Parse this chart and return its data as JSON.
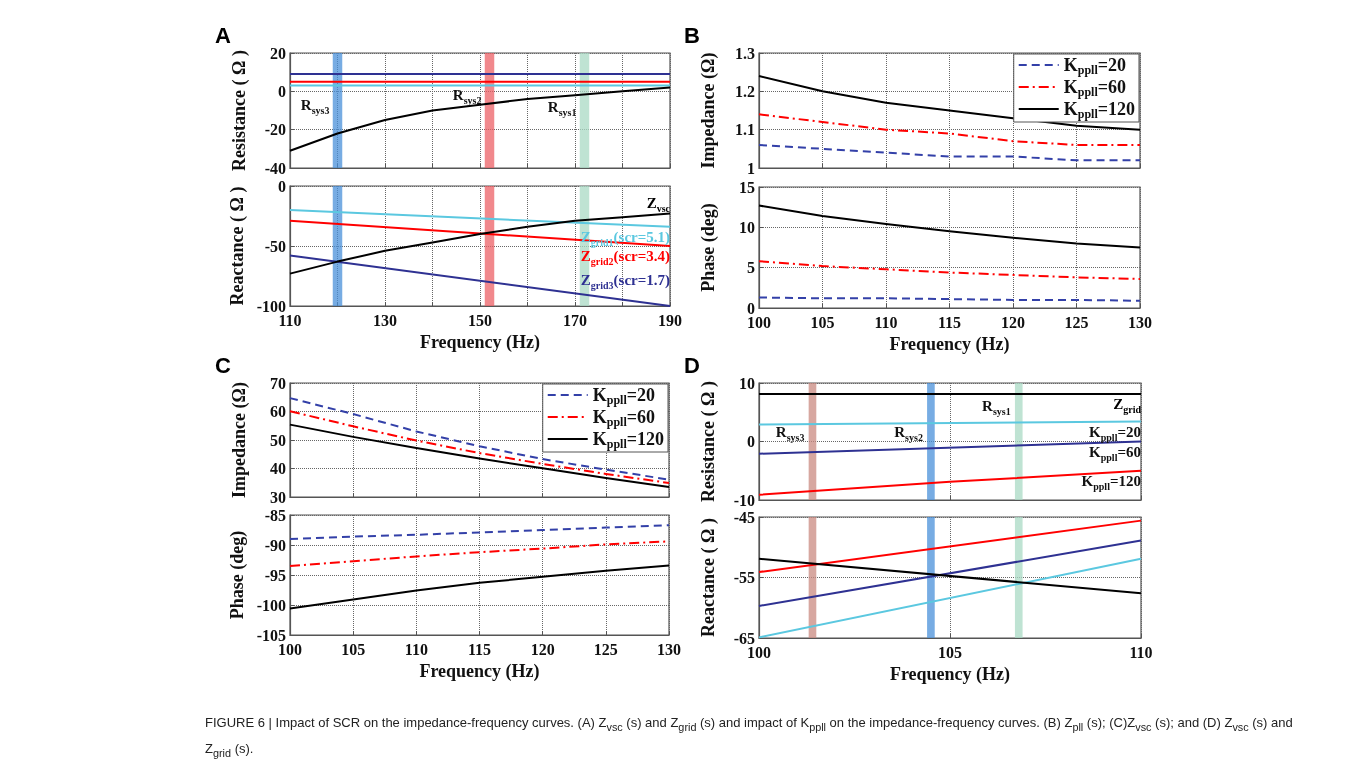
{
  "chart_data": [
    {
      "type": "line",
      "title": "A",
      "ylabel": "Resistance ( Ω )",
      "x": [
        110,
        120,
        130,
        140,
        150,
        160,
        170,
        180,
        190
      ],
      "xlim": [
        110,
        190
      ],
      "xticks": [
        110,
        {
          "value": 120,
          "label": null
        },
        130,
        {
          "value": 140,
          "label": null
        },
        150,
        {
          "value": 160,
          "label": null
        },
        170,
        {
          "value": 180,
          "label": null
        },
        190
      ],
      "ylim": [
        -40,
        20
      ],
      "yticks": [
        -40,
        -20,
        0,
        20
      ],
      "grid": true,
      "tick_labels": "y",
      "marker": "none",
      "series": [
        {
          "color": "#2e3192",
          "x": [
            110,
            190
          ],
          "values": [
            9,
            9
          ]
        },
        {
          "color": "#ff0000",
          "x": [
            110,
            190
          ],
          "values": [
            5,
            5
          ]
        },
        {
          "color": "#5bc8e0",
          "x": [
            110,
            190
          ],
          "values": [
            3,
            3
          ]
        },
        {
          "color": "#000000",
          "values": [
            -31,
            -22,
            -15,
            -10,
            -7,
            -4,
            -2,
            0,
            2
          ]
        }
      ],
      "bands": [
        {
          "axis": "x",
          "from": 119,
          "to": 121,
          "color": "#4a90d9"
        },
        {
          "axis": "x",
          "from": 151,
          "to": 153,
          "color": "#ec6066"
        },
        {
          "axis": "x",
          "from": 171,
          "to": 173,
          "color": "#a9d9c4"
        }
      ],
      "annotations": [
        {
          "text": "R$_{sys3}$",
          "x": 120,
          "y": -7
        },
        {
          "text": "R$_{sys2}$",
          "x": 152,
          "y": -2
        },
        {
          "text": "R$_{sys1}$",
          "x": 172,
          "y": -8
        },
        "FIGURE 6 | Impact of SCR on the impedance-frequency curves. (A) Z$_{vsc}$ (s) and Z$_{grid}$ (s) and impact of K$_{ppll}$ on the impedance-frequency curves. (B) Z$_{pll}$ (s); (C)Z$_{vsc}$ (s); and (D) Z$_{vsc}$ (s) and Z$_{grid}$ (s)."
      ]
    },
    {
      "type": "line",
      "xlabel": "Frequency (Hz)",
      "ylabel": "Reactance ( Ω )",
      "x": [
        110,
        120,
        130,
        140,
        150,
        160,
        170,
        180,
        190
      ],
      "xlim": [
        110,
        190
      ],
      "xticks": [
        110,
        {
          "value": 120,
          "label": null
        },
        130,
        {
          "value": 140,
          "label": null
        },
        150,
        {
          "value": 160,
          "label": null
        },
        170,
        {
          "value": 180,
          "label": null
        },
        190
      ],
      "ylim": [
        -100,
        0
      ],
      "yticks": [
        -100,
        -50,
        0
      ],
      "grid": true,
      "marker": "none",
      "series": [
        {
          "name": "Z$_{grid1}$(scr=5.1)",
          "color": "#5bc8e0",
          "x": [
            110,
            190
          ],
          "values": [
            -20,
            -34
          ]
        },
        {
          "name": "Z$_{grid2}$(scr=3.4)",
          "color": "#ff0000",
          "x": [
            110,
            190
          ],
          "values": [
            -29,
            -50
          ]
        },
        {
          "name": "Z$_{grid3}$(scr=1.7)",
          "color": "#2e3192",
          "x": [
            110,
            190
          ],
          "values": [
            -58,
            -100
          ]
        },
        {
          "name": "Z$_{vsc}$",
          "color": "#000000",
          "values": [
            -73,
            -63,
            -54,
            -47,
            -40,
            -34,
            -29,
            -26,
            -23
          ]
        }
      ],
      "bands": [
        {
          "axis": "x",
          "from": 119,
          "to": 121,
          "color": "#4a90d9"
        },
        {
          "axis": "x",
          "from": 151,
          "to": 153,
          "color": "#ec6066"
        },
        {
          "axis": "x",
          "from": 171,
          "to": 173,
          "color": "#a9d9c4"
        }
      ]
    },
    {
      "type": "line",
      "title": "B",
      "ylabel": "Impedance (Ω)",
      "x": [
        100,
        105,
        110,
        115,
        120,
        125,
        130
      ],
      "xlim": [
        100,
        130
      ],
      "xticks": [
        100,
        105,
        110,
        115,
        120,
        125,
        130
      ],
      "ylim": [
        1,
        1.3
      ],
      "yticks": [
        1,
        1.1,
        1.2,
        1.3
      ],
      "grid": true,
      "tick_labels": "y",
      "marker": "none",
      "legend": "top right",
      "series": [
        {
          "name": "K$_{ppll}$=20",
          "color": "#3340a8",
          "line_style": "dashed",
          "values": [
            1.06,
            1.05,
            1.04,
            1.03,
            1.03,
            1.02,
            1.02
          ]
        },
        {
          "name": "K$_{ppll}$=60",
          "color": "#ff0000",
          "line_style": "dashdot",
          "values": [
            1.14,
            1.12,
            1.1,
            1.09,
            1.07,
            1.06,
            1.06
          ]
        },
        {
          "name": "K$_{ppll}$=120",
          "color": "#000000",
          "line_style": "solid",
          "values": [
            1.24,
            1.2,
            1.17,
            1.15,
            1.13,
            1.11,
            1.1
          ]
        }
      ]
    },
    {
      "type": "line",
      "xlabel": "Frequency (Hz)",
      "ylabel": "Phase (deg)",
      "x": [
        100,
        105,
        110,
        115,
        120,
        125,
        130
      ],
      "xlim": [
        100,
        130
      ],
      "xticks": [
        100,
        105,
        110,
        115,
        120,
        125,
        130
      ],
      "ylim": [
        0,
        15
      ],
      "yticks": [
        0,
        5,
        10,
        15
      ],
      "grid": true,
      "marker": "none",
      "series": [
        {
          "color": "#3340a8",
          "line_style": "dashed",
          "values": [
            1.3,
            1.2,
            1.2,
            1.1,
            1.0,
            1.0,
            0.9
          ]
        },
        {
          "color": "#ff0000",
          "line_style": "dashdot",
          "values": [
            5.8,
            5.2,
            4.8,
            4.4,
            4.1,
            3.8,
            3.6
          ]
        },
        {
          "color": "#000000",
          "line_style": "solid",
          "values": [
            12.7,
            11.4,
            10.4,
            9.5,
            8.7,
            8.0,
            7.5
          ]
        }
      ]
    },
    {
      "type": "line",
      "title": "C",
      "ylabel": "Impedance (Ω)",
      "x": [
        100,
        105,
        110,
        115,
        120,
        125,
        130
      ],
      "xlim": [
        100,
        130
      ],
      "xticks": [
        100,
        105,
        110,
        115,
        120,
        125,
        130
      ],
      "ylim": [
        30,
        70
      ],
      "yticks": [
        30,
        40,
        50,
        60,
        70
      ],
      "grid": true,
      "tick_labels": "y",
      "marker": "none",
      "legend": "top right",
      "series": [
        {
          "name": "K$_{ppll}$=20",
          "color": "#3340a8",
          "line_style": "dashed",
          "values": [
            64.7,
            59.1,
            53,
            47.8,
            43.3,
            39.6,
            36.1
          ]
        },
        {
          "name": "K$_{ppll}$=60",
          "color": "#ff0000",
          "line_style": "dashdot",
          "values": [
            60.1,
            54.8,
            49.8,
            45.4,
            41.6,
            38.1,
            34.9
          ]
        },
        {
          "name": "K$_{ppll}$=120",
          "color": "#000000",
          "line_style": "solid",
          "values": [
            55.4,
            51.1,
            47.2,
            43.5,
            40.1,
            36.7,
            33.5
          ]
        }
      ]
    },
    {
      "type": "line",
      "xlabel": "Frequency (Hz)",
      "ylabel": "Phase (deg)",
      "x": [
        100,
        105,
        110,
        115,
        120,
        125,
        130
      ],
      "xlim": [
        100,
        130
      ],
      "xticks": [
        100,
        105,
        110,
        115,
        120,
        125,
        130
      ],
      "ylim": [
        -105,
        -85
      ],
      "yticks": [
        -105,
        -100,
        -95,
        -90,
        -85
      ],
      "grid": true,
      "marker": "none",
      "series": [
        {
          "color": "#3340a8",
          "line_style": "dashed",
          "values": [
            -89,
            -88.6,
            -88.3,
            -87.9,
            -87.5,
            -87.1,
            -86.7
          ]
        },
        {
          "color": "#ff0000",
          "line_style": "dashdot",
          "values": [
            -93.5,
            -92.7,
            -91.9,
            -91.2,
            -90.6,
            -89.9,
            -89.4
          ]
        },
        {
          "color": "#000000",
          "line_style": "solid",
          "values": [
            -100.6,
            -99.1,
            -97.6,
            -96.3,
            -95.3,
            -94.3,
            -93.4
          ]
        }
      ]
    },
    {
      "type": "line",
      "title": "D",
      "ylabel": "Resistance ( Ω )",
      "x": [
        100,
        110
      ],
      "xlim": [
        100,
        110
      ],
      "xticks": [
        100,
        105,
        110
      ],
      "ylim": [
        -10,
        10
      ],
      "yticks": [
        -10,
        0,
        10
      ],
      "grid": true,
      "tick_labels": "y",
      "marker": "none",
      "series": [
        {
          "name": "Z$_{grid}$",
          "color": "#000000",
          "values": [
            8.1,
            8.1
          ]
        },
        {
          "color": "#5bc8e0",
          "values": [
            2.9,
            3.4
          ]
        },
        {
          "color": "#2e3192",
          "values": [
            -2.1,
            0
          ]
        },
        {
          "color": "#ff0000",
          "x": [
            100,
            105,
            110
          ],
          "values": [
            -9.1,
            -6.9,
            -5.0
          ]
        }
      ],
      "bands": [
        {
          "axis": "x",
          "from": 101.3,
          "to": 101.5,
          "color": "#c98a80"
        },
        {
          "axis": "x",
          "from": 104.4,
          "to": 104.6,
          "color": "#4a90d9"
        },
        {
          "axis": "x",
          "from": 106.7,
          "to": 106.9,
          "color": "#a9d9c4"
        }
      ],
      "annotations": [
        {
          "text": "R$_{sys3}$",
          "x": 101.4,
          "y": 1.7
        },
        {
          "text": "R$_{sys2}$",
          "x": 104.5,
          "y": 1.7
        },
        {
          "text": "R$_{sys1}$",
          "x": 106.8,
          "y": 6.1
        },
        {
          "text": "K$_{ppll}$=20",
          "x": 110,
          "y": 3.4
        },
        {
          "text": "K$_{ppll}$=60",
          "x": 110,
          "y": 0
        },
        {
          "text": "K$_{ppll}$=120",
          "x": 110,
          "y": -5.0
        }
      ]
    },
    {
      "type": "line",
      "xlabel": "Frequency (Hz)",
      "ylabel": "Reactance ( Ω )",
      "x": [
        100,
        110
      ],
      "xlim": [
        100,
        110
      ],
      "xticks": [
        100,
        105,
        110
      ],
      "ylim": [
        -65,
        -45
      ],
      "yticks": [
        -65,
        -55,
        -45
      ],
      "grid": true,
      "marker": "none",
      "series": [
        {
          "color": "#ff0000",
          "values": [
            -54.1,
            -45.6
          ]
        },
        {
          "color": "#2e3192",
          "values": [
            -59.7,
            -48.9
          ]
        },
        {
          "color": "#5bc8e0",
          "values": [
            -64.9,
            -51.9
          ]
        },
        {
          "color": "#000000",
          "values": [
            -51.9,
            -57.6
          ]
        }
      ],
      "bands": [
        {
          "axis": "x",
          "from": 101.3,
          "to": 101.5,
          "color": "#c98a80"
        },
        {
          "axis": "x",
          "from": 104.4,
          "to": 104.6,
          "color": "#4a90d9"
        },
        {
          "axis": "x",
          "from": 106.7,
          "to": 106.9,
          "color": "#a9d9c4"
        }
      ]
    }
  ]
}
